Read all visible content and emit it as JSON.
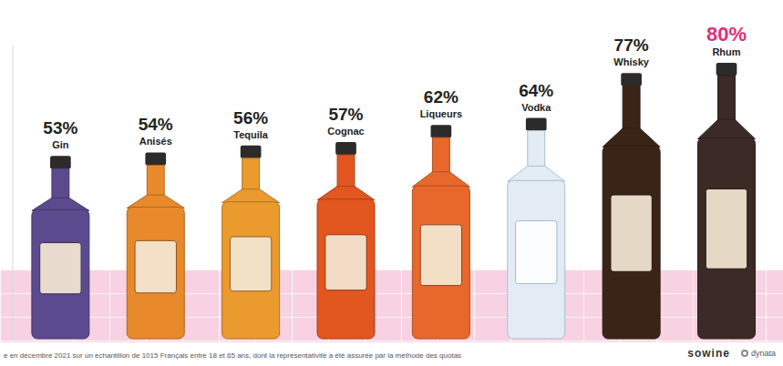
{
  "chart_data": {
    "type": "bar",
    "categories": [
      "Gin",
      "Anisés",
      "Tequila",
      "Cognac",
      "Liqueurs",
      "Vodka",
      "Whisky",
      "Rhum"
    ],
    "values": [
      53,
      54,
      56,
      57,
      62,
      64,
      77,
      80
    ],
    "value_labels": [
      "53%",
      "54%",
      "56%",
      "57%",
      "62%",
      "64%",
      "77%",
      "80%"
    ],
    "colors": [
      "#5b4a8e",
      "#e8892c",
      "#eb9a2e",
      "#e2561f",
      "#e8682b",
      "#e3ecf5",
      "#3a2418",
      "#3b2a25"
    ],
    "ylim": [
      0,
      85
    ],
    "tick_labels": false,
    "data_labels": true,
    "grid": false,
    "footnote": "e en décembre 2021 sur un échantillon de 1015 Français entre 18 et 65 ans, dont la représentativité a été assurée par la méthode des quotas",
    "sources": [
      "sowine",
      "dynata"
    ]
  }
}
